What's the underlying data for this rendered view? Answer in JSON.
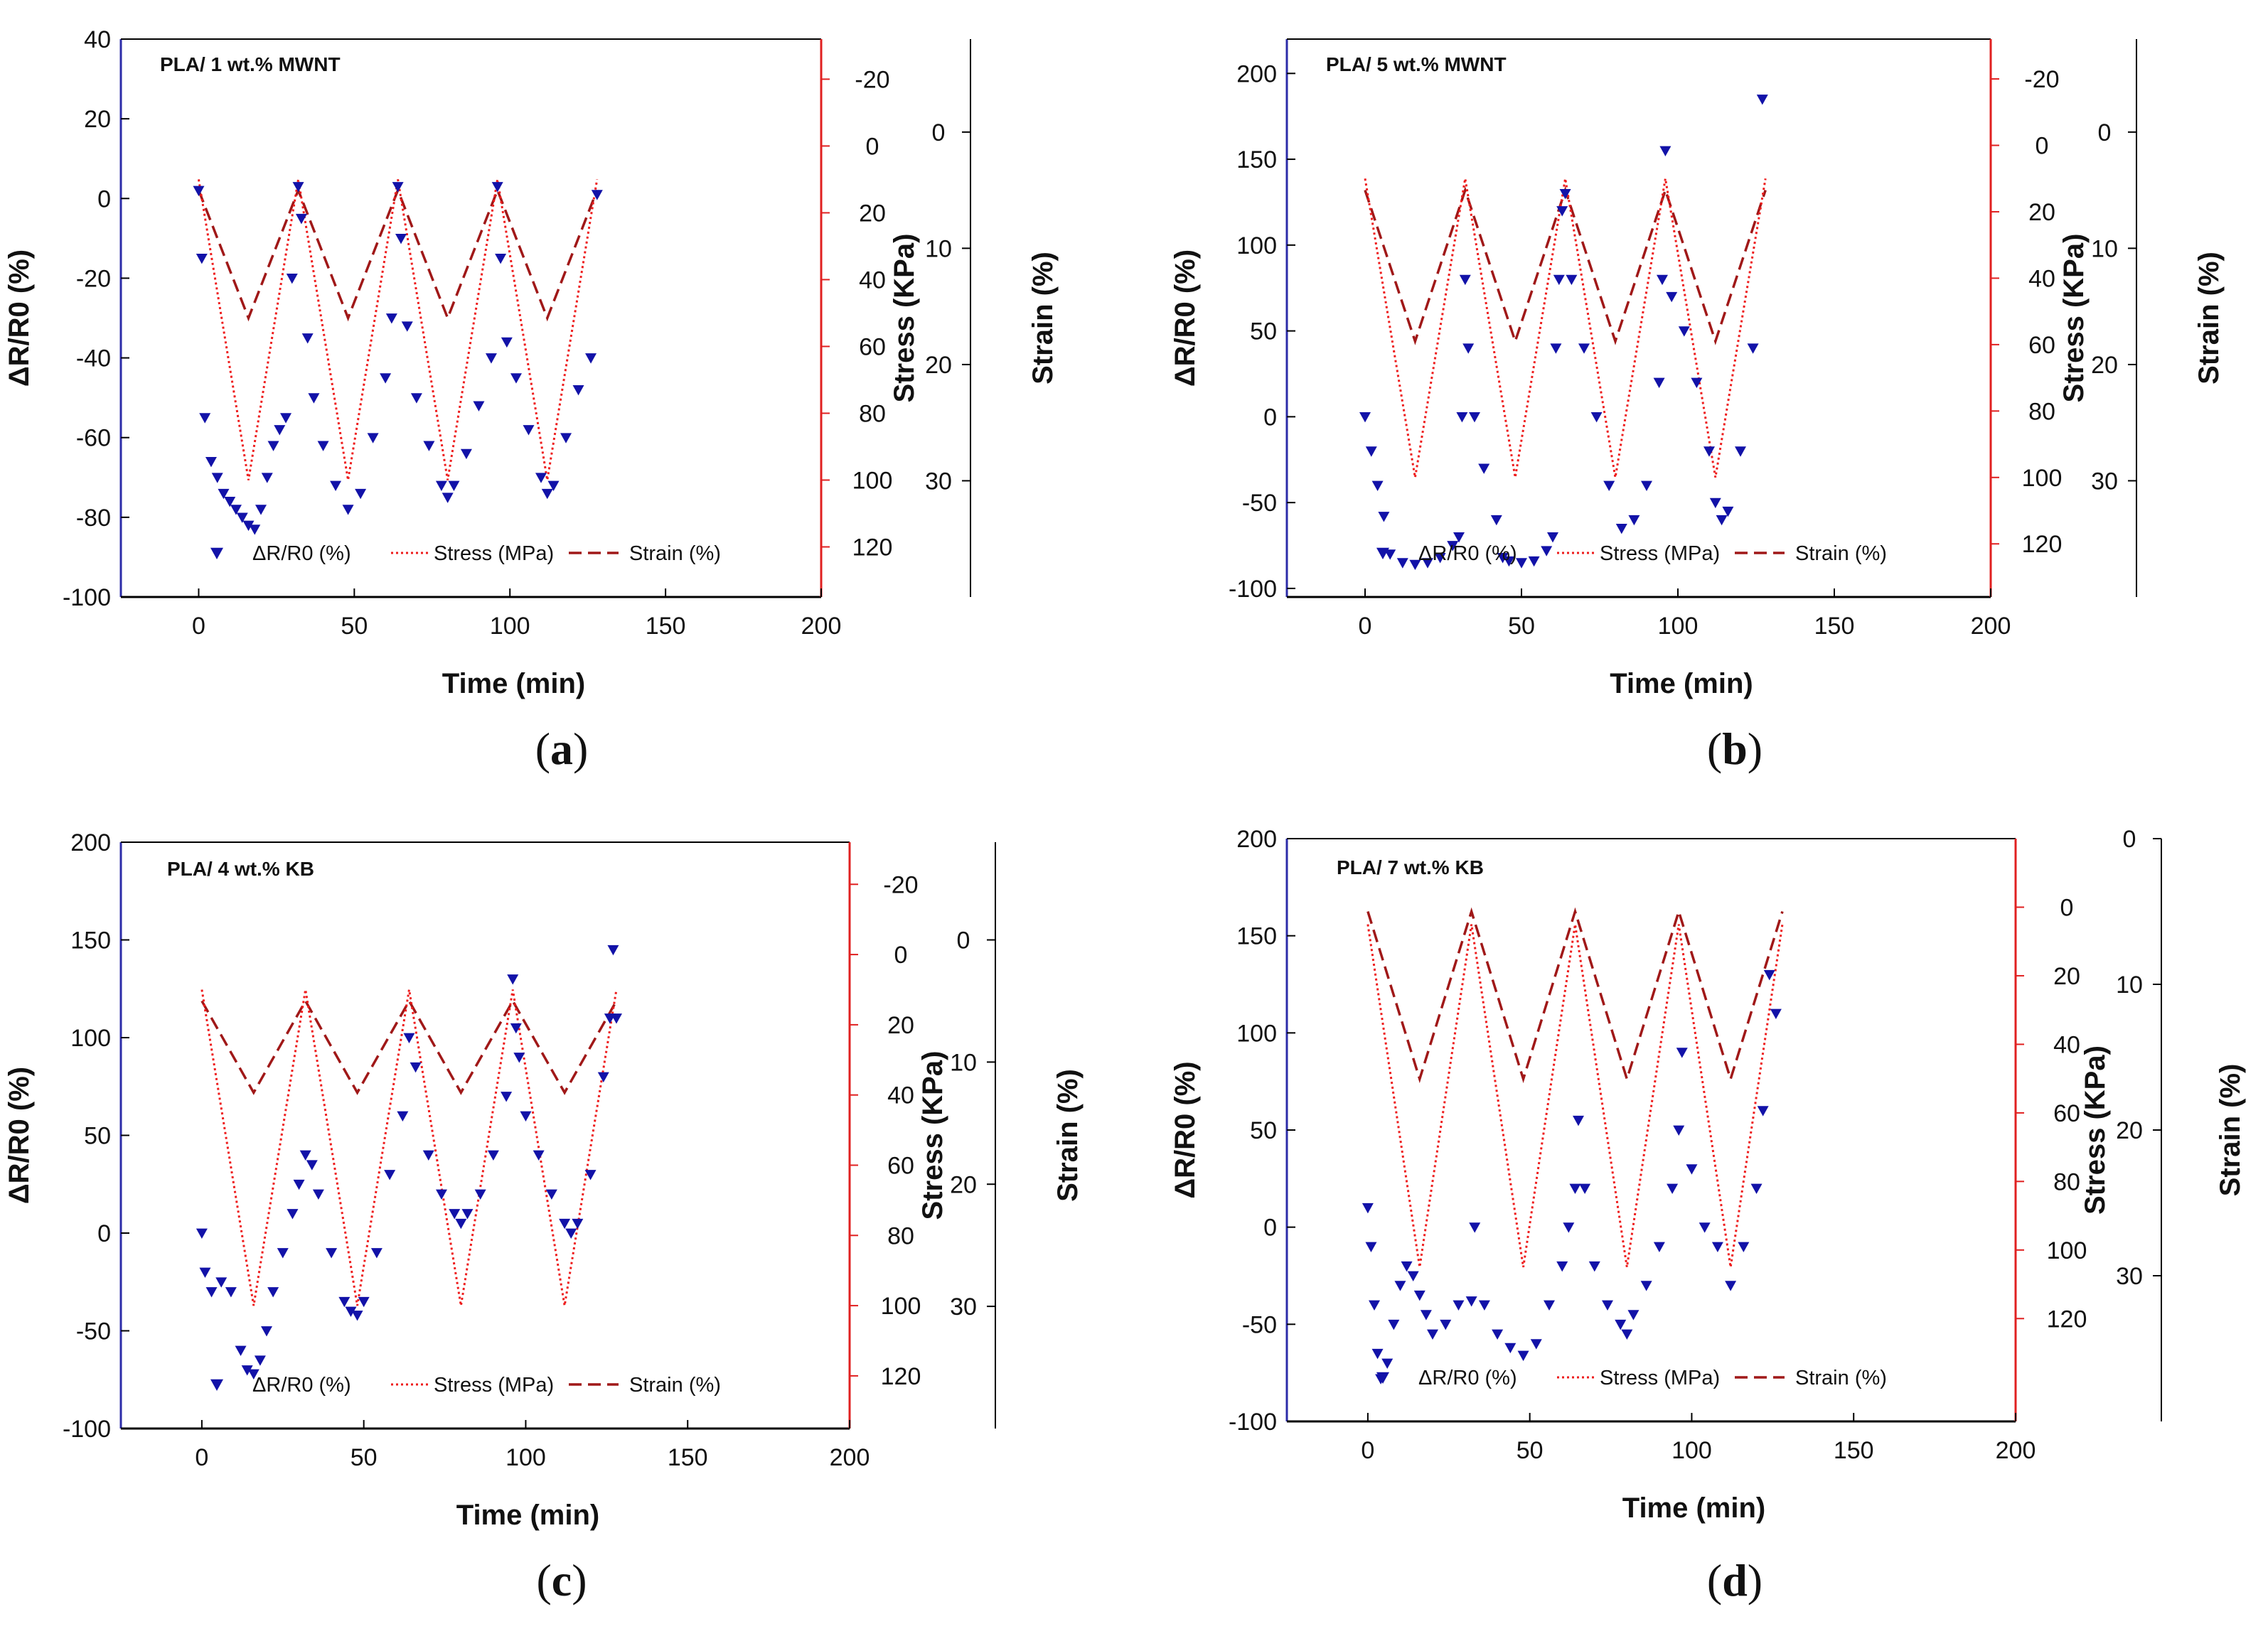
{
  "colors": {
    "data": "#1212a8",
    "left_axis": "#2c2ca8",
    "stress": "#ee1c1c",
    "strain": "#a01818",
    "stress_axis": "#e02020",
    "black": "#000000"
  },
  "chart_data": [
    {
      "type": "line",
      "title": "PLA/ 1 wt.% MWNT",
      "caption_letter": "a",
      "xlabel": "Time (min)",
      "ylabel": "ΔR/R0 (%)",
      "y2label": "Stress (KPa)",
      "y3label": "Strain (%)",
      "xlim": [
        -25,
        200
      ],
      "ylim": [
        -100,
        40
      ],
      "y2lim": [
        135,
        -32
      ],
      "y3lim": [
        40,
        -8
      ],
      "xticks": [
        "0",
        "50",
        "100",
        "150",
        "200"
      ],
      "yticks": [
        "-100",
        "-80",
        "-60",
        "-40",
        "-20",
        "0",
        "20",
        "40"
      ],
      "y2ticks": [
        "-20",
        "0",
        "20",
        "40",
        "60",
        "80",
        "100",
        "120"
      ],
      "y3ticks": [
        "0",
        "10",
        "20",
        "30"
      ],
      "legend": [
        "ΔR/R0 (%)",
        "Stress (MPa)",
        "Strain (%)"
      ],
      "series": [
        {
          "name": "ΔR/R0 (%)",
          "axis": "left",
          "style": "triangle-down",
          "x": [
            0,
            1,
            2,
            4,
            6,
            8,
            10,
            12,
            14,
            16,
            18,
            20,
            22,
            24,
            26,
            28,
            30,
            32,
            33,
            35,
            37,
            40,
            44,
            48,
            52,
            56,
            60,
            62,
            64,
            65,
            67,
            70,
            74,
            78,
            80,
            82,
            86,
            90,
            94,
            96,
            97,
            99,
            102,
            106,
            110,
            112,
            114,
            118,
            122,
            126,
            128
          ],
          "values": [
            2,
            -15,
            -55,
            -66,
            -70,
            -74,
            -76,
            -78,
            -80,
            -82,
            -83,
            -78,
            -70,
            -62,
            -58,
            -55,
            -20,
            3,
            -5,
            -35,
            -50,
            -62,
            -72,
            -78,
            -74,
            -60,
            -45,
            -30,
            3,
            -10,
            -32,
            -50,
            -62,
            -72,
            -75,
            -72,
            -64,
            -52,
            -40,
            3,
            -15,
            -36,
            -45,
            -58,
            -70,
            -74,
            -72,
            -60,
            -48,
            -40,
            1
          ]
        },
        {
          "name": "Stress (MPa)",
          "axis": "right1",
          "x": [
            0,
            16,
            32,
            48,
            64,
            80,
            96,
            112,
            128
          ],
          "values": [
            10,
            100,
            10,
            100,
            10,
            100,
            10,
            100,
            10
          ]
        },
        {
          "name": "Strain (%)",
          "axis": "right2",
          "x": [
            0,
            16,
            32,
            48,
            64,
            80,
            96,
            112,
            128
          ],
          "values": [
            5,
            16,
            5,
            16,
            5,
            16,
            5,
            16,
            5
          ]
        }
      ]
    },
    {
      "type": "line",
      "title": "PLA/ 5 wt.% MWNT",
      "caption_letter": "b",
      "xlabel": "Time (min)",
      "ylabel": "ΔR/R0 (%)",
      "y2label": "Stress (KPa)",
      "y3label": "Strain (%)",
      "xlim": [
        -25,
        200
      ],
      "ylim": [
        -105,
        220
      ],
      "y2lim": [
        136,
        -32
      ],
      "y3lim": [
        40,
        -8
      ],
      "xticks": [
        "0",
        "50",
        "100",
        "150",
        "200"
      ],
      "yticks": [
        "-100",
        "-50",
        "0",
        "50",
        "100",
        "150",
        "200"
      ],
      "y2ticks": [
        "-20",
        "0",
        "20",
        "40",
        "60",
        "80",
        "100",
        "120"
      ],
      "y3ticks": [
        "0",
        "10",
        "20",
        "30"
      ],
      "legend": [
        "ΔR/R0 (%)",
        "Stress (MPa)",
        "Strain (%)"
      ],
      "series": [
        {
          "name": "ΔR/R0 (%)",
          "axis": "left",
          "style": "triangle-down",
          "x": [
            0,
            2,
            4,
            6,
            8,
            12,
            16,
            20,
            24,
            28,
            30,
            31,
            32,
            33,
            35,
            38,
            42,
            44,
            46,
            50,
            54,
            58,
            60,
            61,
            62,
            63,
            64,
            66,
            70,
            74,
            78,
            82,
            86,
            90,
            94,
            95,
            96,
            98,
            102,
            106,
            110,
            112,
            114,
            116,
            120,
            124,
            127
          ],
          "values": [
            0,
            -20,
            -40,
            -58,
            -80,
            -85,
            -86,
            -85,
            -82,
            -75,
            -70,
            0,
            80,
            40,
            0,
            -30,
            -60,
            -82,
            -84,
            -85,
            -84,
            -78,
            -70,
            40,
            80,
            120,
            130,
            80,
            40,
            0,
            -40,
            -65,
            -60,
            -40,
            20,
            80,
            155,
            70,
            50,
            20,
            -20,
            -50,
            -60,
            -55,
            -20,
            40,
            185
          ]
        },
        {
          "name": "Stress (MPa)",
          "axis": "right1",
          "x": [
            0,
            16,
            32,
            48,
            64,
            80,
            96,
            112,
            128
          ],
          "values": [
            10,
            100,
            10,
            100,
            10,
            100,
            10,
            100,
            10
          ]
        },
        {
          "name": "Strain (%)",
          "axis": "right2",
          "x": [
            0,
            16,
            32,
            48,
            64,
            80,
            96,
            112,
            128
          ],
          "values": [
            5,
            18,
            5,
            18,
            5,
            18,
            5,
            18,
            5
          ]
        }
      ]
    },
    {
      "type": "line",
      "title": "PLA/ 4 wt.% KB",
      "caption_letter": "c",
      "xlabel": "Time (min)",
      "ylabel": "ΔR/R0 (%)",
      "y2label": "Stress (KPa)",
      "y3label": "Strain (%)",
      "xlim": [
        -25,
        200
      ],
      "ylim": [
        -100,
        200
      ],
      "y2lim": [
        135,
        -32
      ],
      "y3lim": [
        40,
        -8
      ],
      "xticks": [
        "0",
        "50",
        "100",
        "150",
        "200"
      ],
      "yticks": [
        "-100",
        "-50",
        "0",
        "50",
        "100",
        "150",
        "200"
      ],
      "y2ticks": [
        "-20",
        "0",
        "20",
        "40",
        "60",
        "80",
        "100",
        "120"
      ],
      "y3ticks": [
        "0",
        "10",
        "20",
        "30"
      ],
      "legend": [
        "ΔR/R0 (%)",
        "Stress (MPa)",
        "Strain (%)"
      ],
      "series": [
        {
          "name": "ΔR/R0 (%)",
          "axis": "left",
          "style": "triangle-down",
          "x": [
            0,
            1,
            3,
            6,
            9,
            12,
            14,
            16,
            18,
            20,
            22,
            25,
            28,
            30,
            32,
            34,
            36,
            40,
            44,
            46,
            48,
            50,
            54,
            58,
            62,
            64,
            66,
            70,
            74,
            78,
            80,
            82,
            86,
            90,
            94,
            96,
            97,
            98,
            100,
            104,
            108,
            112,
            114,
            116,
            120,
            124,
            126,
            127,
            128
          ],
          "values": [
            0,
            -20,
            -30,
            -25,
            -30,
            -60,
            -70,
            -72,
            -65,
            -50,
            -30,
            -10,
            10,
            25,
            40,
            35,
            20,
            -10,
            -35,
            -40,
            -42,
            -35,
            -10,
            30,
            60,
            100,
            85,
            40,
            20,
            10,
            5,
            10,
            20,
            40,
            70,
            130,
            105,
            90,
            60,
            40,
            20,
            5,
            0,
            5,
            30,
            80,
            110,
            145,
            110
          ]
        },
        {
          "name": "Stress (MPa)",
          "axis": "right1",
          "x": [
            0,
            16,
            32,
            48,
            64,
            80,
            96,
            112,
            128
          ],
          "values": [
            10,
            100,
            10,
            100,
            10,
            100,
            10,
            100,
            10
          ]
        },
        {
          "name": "Strain (%)",
          "axis": "right2",
          "x": [
            0,
            16,
            32,
            48,
            64,
            80,
            96,
            112,
            128
          ],
          "values": [
            5,
            12.5,
            5,
            12.5,
            5,
            12.5,
            5,
            12.5,
            5
          ]
        }
      ]
    },
    {
      "type": "line",
      "title": "PLA/ 7 wt.% KB",
      "caption_letter": "d",
      "xlabel": "Time (min)",
      "ylabel": "ΔR/R0 (%)",
      "y2label": "Stress (KPa)",
      "y3label": "Strain (%)",
      "xlim": [
        -25,
        200
      ],
      "ylim": [
        -100,
        200
      ],
      "y2lim": [
        150,
        -20
      ],
      "y3lim": [
        40,
        0
      ],
      "xticks": [
        "0",
        "50",
        "100",
        "150",
        "200"
      ],
      "yticks": [
        "-100",
        "-50",
        "0",
        "50",
        "100",
        "150",
        "200"
      ],
      "y2ticks": [
        "0",
        "20",
        "40",
        "60",
        "80",
        "100",
        "120"
      ],
      "y3ticks": [
        "0",
        "10",
        "20",
        "30"
      ],
      "legend": [
        "ΔR/R0 (%)",
        "Stress (MPa)",
        "Strain (%)"
      ],
      "series": [
        {
          "name": "ΔR/R0 (%)",
          "axis": "left",
          "style": "triangle-down",
          "x": [
            0,
            1,
            2,
            3,
            4,
            6,
            8,
            10,
            12,
            14,
            16,
            18,
            20,
            24,
            28,
            32,
            33,
            36,
            40,
            44,
            48,
            52,
            56,
            60,
            62,
            64,
            65,
            67,
            70,
            74,
            78,
            80,
            82,
            86,
            90,
            94,
            96,
            97,
            100,
            104,
            108,
            112,
            116,
            120,
            122,
            124,
            126
          ],
          "values": [
            10,
            -10,
            -40,
            -65,
            -78,
            -70,
            -50,
            -30,
            -20,
            -25,
            -35,
            -45,
            -55,
            -50,
            -40,
            -38,
            0,
            -40,
            -55,
            -62,
            -66,
            -60,
            -40,
            -20,
            0,
            20,
            55,
            20,
            -20,
            -40,
            -50,
            -55,
            -45,
            -30,
            -10,
            20,
            50,
            90,
            30,
            0,
            -10,
            -30,
            -10,
            20,
            60,
            130,
            110
          ]
        },
        {
          "name": "Stress (MPa)",
          "axis": "right1",
          "x": [
            0,
            16,
            32,
            48,
            64,
            80,
            96,
            112,
            128
          ],
          "values": [
            5,
            105,
            5,
            105,
            5,
            105,
            5,
            105,
            5
          ]
        },
        {
          "name": "Strain (%)",
          "axis": "right2",
          "x": [
            0,
            16,
            32,
            48,
            64,
            80,
            96,
            112,
            128
          ],
          "values": [
            5,
            16.5,
            5,
            16.5,
            5,
            16.5,
            5,
            16.5,
            5
          ]
        }
      ]
    }
  ]
}
